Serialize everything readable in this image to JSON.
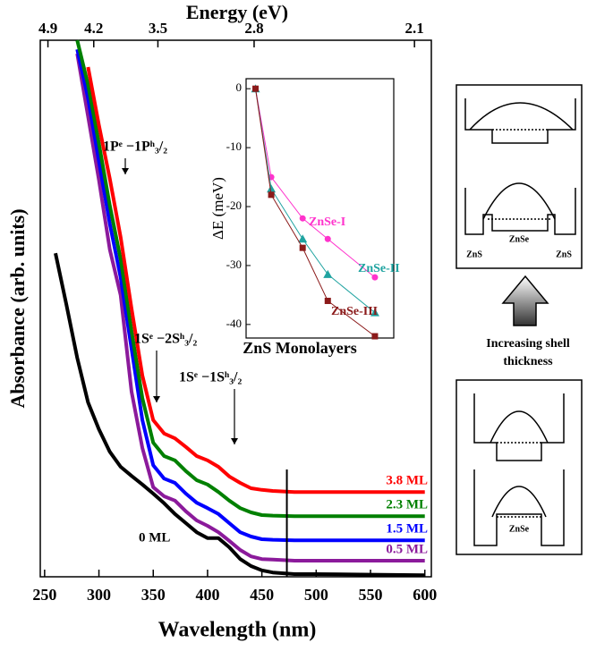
{
  "chart_data": [
    {
      "type": "line",
      "x2_label": "Energy (eV)",
      "x_label": "Wavelength (nm)",
      "y_label": "Absorbance (arb. units)",
      "x": [
        260,
        270,
        280,
        290,
        300,
        310,
        320,
        330,
        340,
        350,
        360,
        370,
        380,
        390,
        400,
        410,
        420,
        430,
        440,
        450,
        460,
        480,
        500,
        550,
        600
      ],
      "xlim": [
        246,
        606
      ],
      "xticks": [
        250,
        300,
        350,
        400,
        450,
        500,
        550,
        600
      ],
      "x2ticks": [
        4.9,
        4.2,
        3.5,
        2.8,
        2.1
      ],
      "ylim": [
        0,
        100
      ],
      "vline_x": 473,
      "annotations": [
        "1Pᵉ −1Pʰ₃/₂",
        "1Sᵉ −2Sʰ₃/₂",
        "1Sᵉ −1Sʰ₃/₂"
      ],
      "series": [
        {
          "name": "0 ML",
          "color": "#000000",
          "values": [
            60.3,
            50.8,
            40.8,
            32.5,
            27.5,
            23.3,
            20.5,
            18.8,
            17.2,
            15.5,
            13.7,
            11.7,
            10,
            8.3,
            7.2,
            7.2,
            5.5,
            3.3,
            2,
            1.2,
            0.8,
            0.5,
            0.5,
            0.4,
            0.3
          ]
        },
        {
          "name": "0.5 ML",
          "color": "#8b1a9b",
          "values": [
            null,
            null,
            97.5,
            85.8,
            74,
            61,
            52.5,
            34.5,
            24,
            16.7,
            15,
            14.2,
            12.2,
            10.5,
            9.5,
            8.3,
            6.7,
            5,
            3.8,
            3.3,
            3.2,
            3,
            3,
            3,
            3
          ]
        },
        {
          "name": "1.5 ML",
          "color": "#0000ff",
          "values": [
            null,
            null,
            98.3,
            89.2,
            77.5,
            65.8,
            55.8,
            42.5,
            29.2,
            20.8,
            18.3,
            17.5,
            15.5,
            13.8,
            12.8,
            11.7,
            10,
            8.3,
            7.5,
            7,
            6.9,
            6.8,
            6.8,
            6.8,
            6.8
          ]
        },
        {
          "name": "2.3 ML",
          "color": "#008000",
          "values": [
            null,
            null,
            100,
            91.7,
            80.8,
            69.2,
            59.2,
            45.8,
            33.3,
            25,
            22.5,
            21.7,
            19.7,
            18,
            17.2,
            15.8,
            14.2,
            12.8,
            12,
            11.5,
            11.4,
            11.3,
            11.3,
            11.3,
            11.3
          ]
        },
        {
          "name": "3.8 ML",
          "color": "#ff0000",
          "values": [
            null,
            null,
            null,
            95,
            84.2,
            74.2,
            63.3,
            50,
            37.5,
            29.2,
            26.7,
            25.8,
            24.2,
            22.5,
            21.7,
            20.5,
            18.7,
            17.5,
            16.5,
            16.2,
            16,
            15.8,
            15.8,
            15.8,
            15.8
          ]
        }
      ]
    },
    {
      "type": "line",
      "x_label": "ZnS Monolayers",
      "y_label": "ΔE (meV)",
      "x": [
        0,
        0.5,
        1.5,
        2.3,
        3.8
      ],
      "xlim": [
        -0.3,
        4.4
      ],
      "ylim": [
        -42.3,
        1.7
      ],
      "yticks": [
        0,
        -10,
        -20,
        -30,
        -40
      ],
      "series": [
        {
          "name": "ZnSe-I",
          "color": "#ff33cc",
          "marker": "circle",
          "values": [
            0,
            -15,
            -22,
            -25.5,
            -32
          ]
        },
        {
          "name": "ZnSe-II",
          "color": "#1fa3a0",
          "marker": "triangle",
          "values": [
            0,
            -17,
            -25.5,
            -31.5,
            -38
          ]
        },
        {
          "name": "ZnSe-III",
          "color": "#8b1a1a",
          "marker": "square",
          "values": [
            0,
            -18,
            -27,
            -36,
            -42
          ]
        }
      ]
    }
  ],
  "diagram": {
    "label_core_1": "ZnSe",
    "label_shell_left": "ZnS",
    "label_shell_right": "ZnS",
    "arrow_text_1": "Increasing shell",
    "arrow_text_2": "thickness",
    "label_core_2": "ZnSe"
  }
}
